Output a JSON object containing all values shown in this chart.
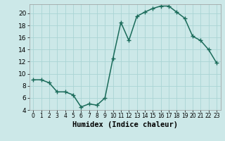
{
  "x": [
    0,
    1,
    2,
    3,
    4,
    5,
    6,
    7,
    8,
    9,
    10,
    11,
    12,
    13,
    14,
    15,
    16,
    17,
    18,
    19,
    20,
    21,
    22,
    23
  ],
  "y": [
    9,
    9,
    8.5,
    7,
    7,
    6.5,
    4.5,
    5,
    4.8,
    6,
    12.5,
    18.5,
    15.5,
    19.5,
    20.2,
    20.8,
    21.2,
    21.2,
    20.2,
    19.2,
    16.2,
    15.5,
    14,
    11.8
  ],
  "line_color": "#1a6b5a",
  "marker": "+",
  "marker_size": 4,
  "marker_linewidth": 1.0,
  "bg_color": "#cce8e8",
  "grid_color": "#aad4d4",
  "xlabel": "Humidex (Indice chaleur)",
  "ylim": [
    4,
    21.5
  ],
  "xlim": [
    -0.5,
    23.5
  ],
  "yticks": [
    4,
    6,
    8,
    10,
    12,
    14,
    16,
    18,
    20
  ],
  "xticks": [
    0,
    1,
    2,
    3,
    4,
    5,
    6,
    7,
    8,
    9,
    10,
    11,
    12,
    13,
    14,
    15,
    16,
    17,
    18,
    19,
    20,
    21,
    22,
    23
  ],
  "ytick_fontsize": 6.5,
  "xtick_fontsize": 5.5,
  "label_fontsize": 7.5,
  "linewidth": 1.1
}
